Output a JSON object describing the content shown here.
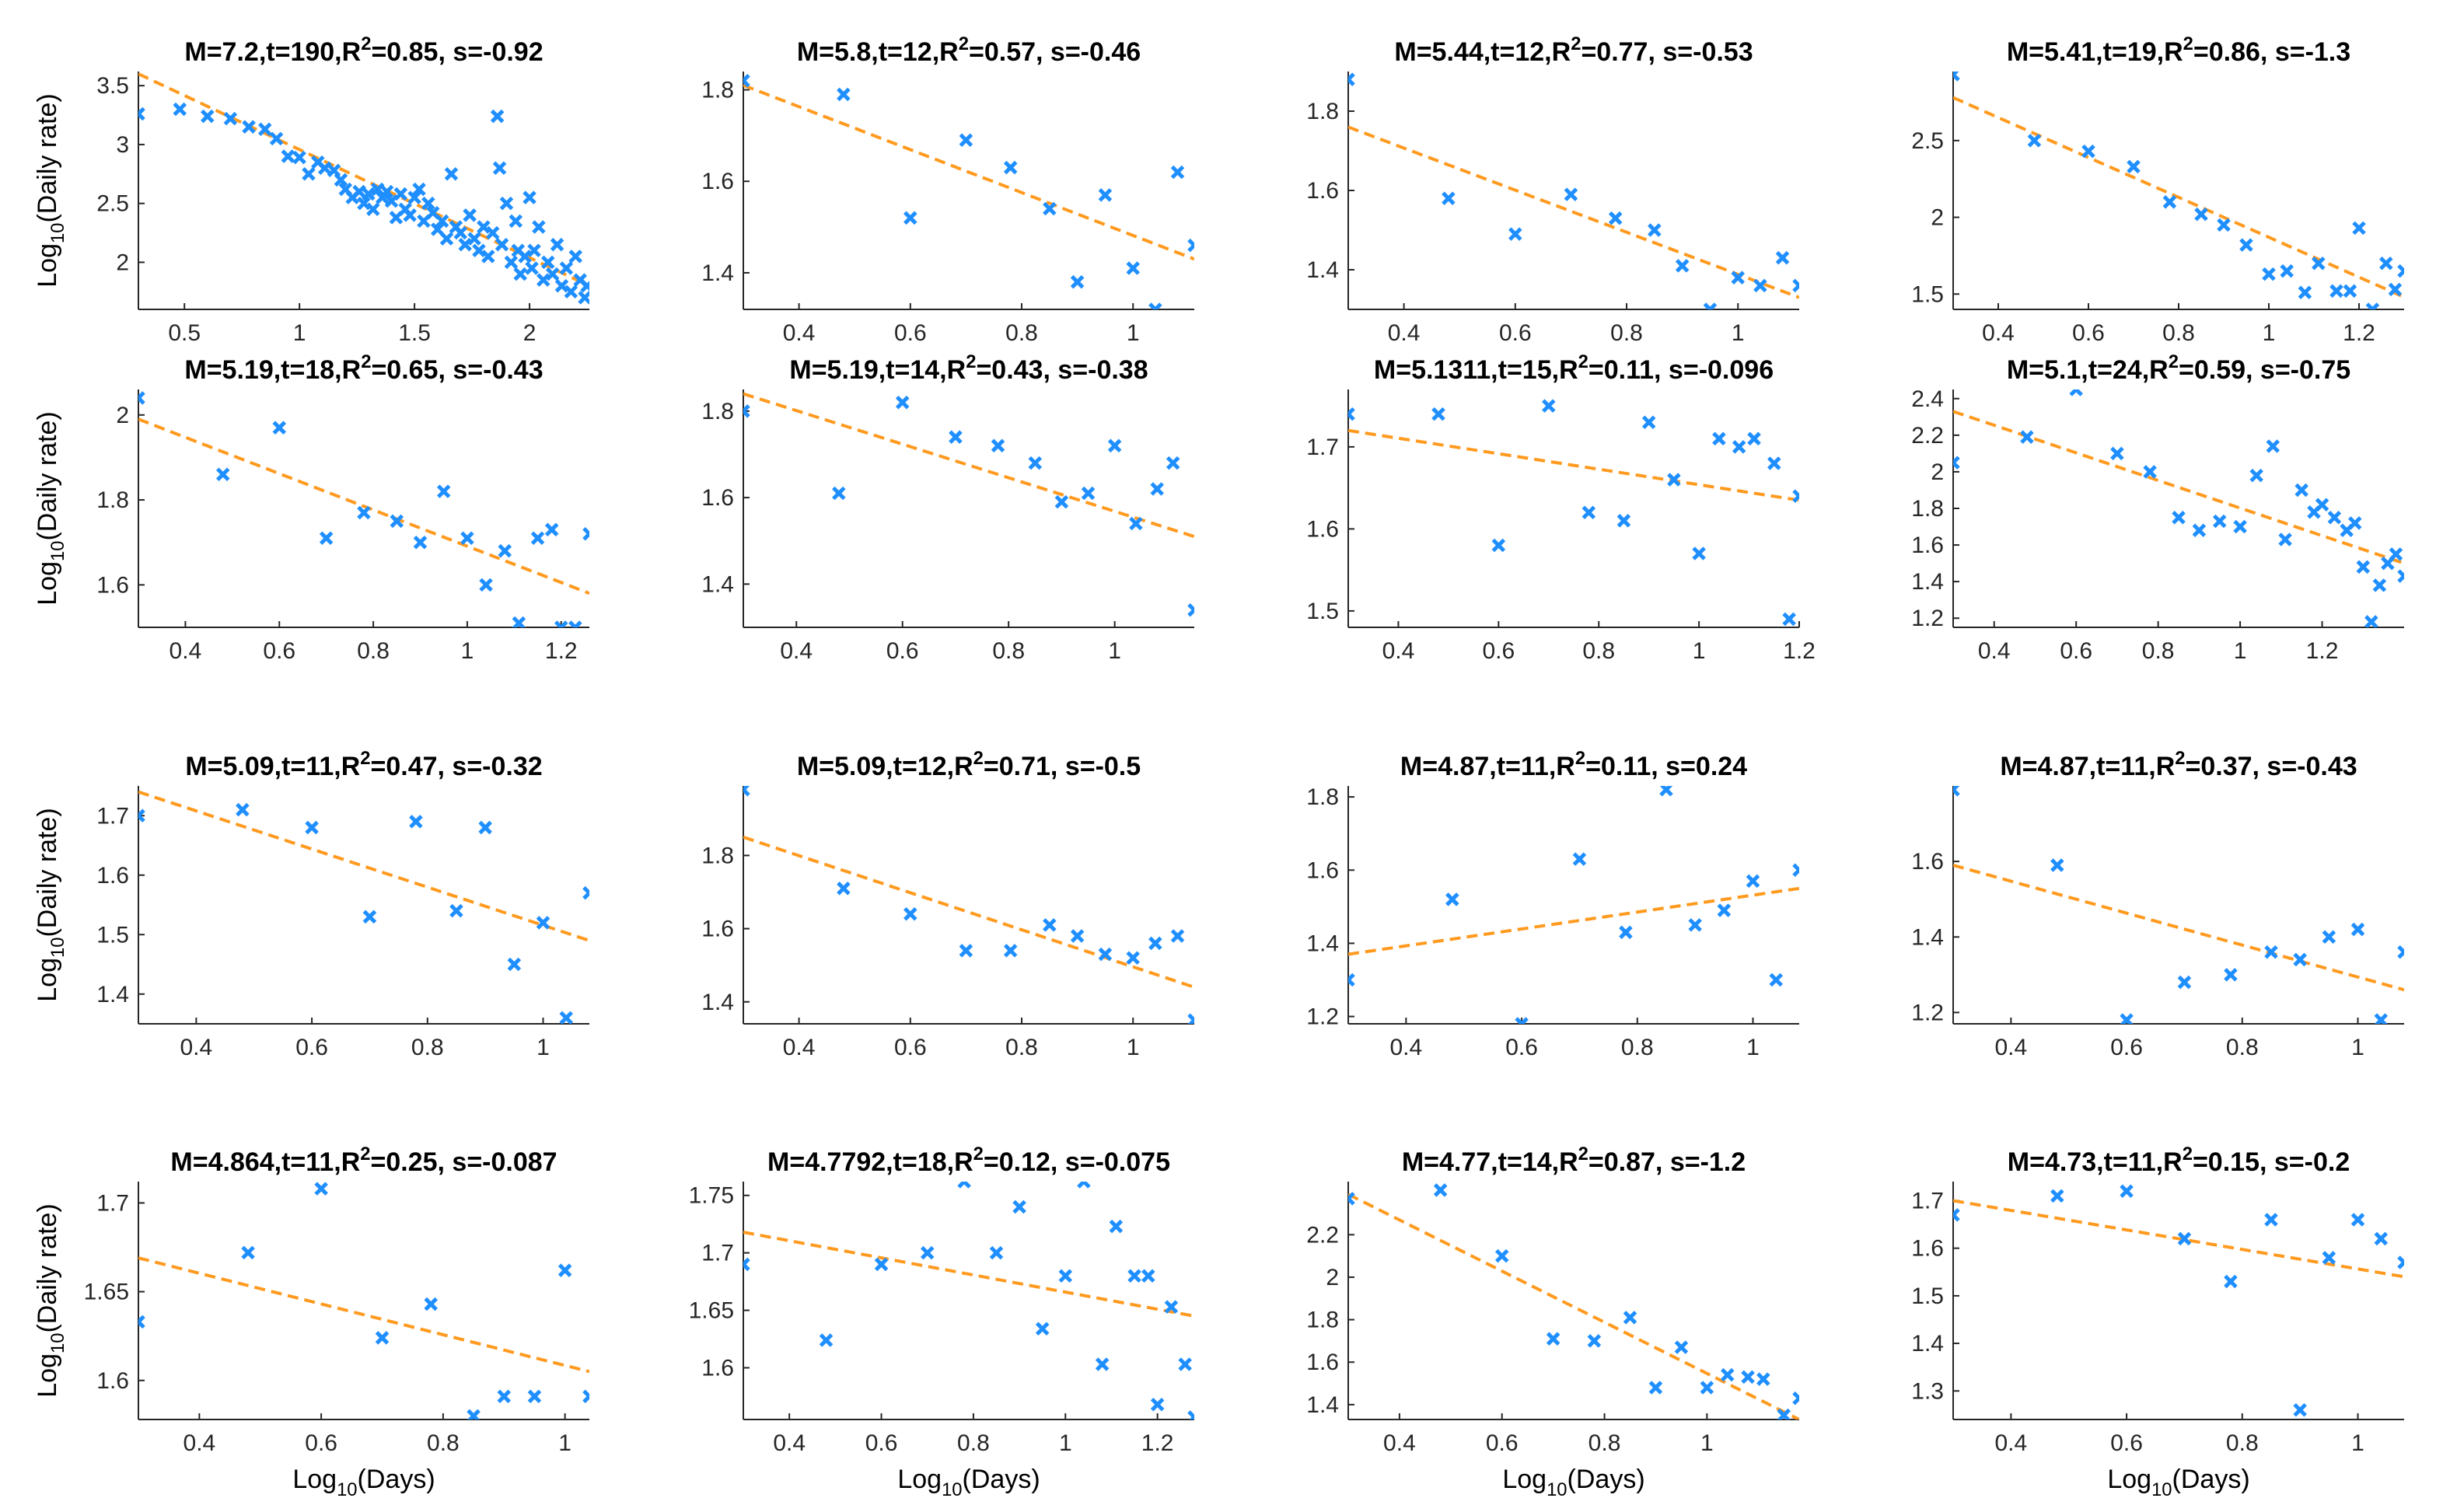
{
  "figure": {
    "shared_ylabel": "Log10(Daily rate)",
    "shared_xlabel": "Log10(Days)",
    "colors": {
      "points": "#1f8fff",
      "fit": "#ff9a1f",
      "axes": "#262626",
      "text": "#000000"
    }
  },
  "chart_data": [
    {
      "type": "scatter",
      "title": "M=7.2,t=190,R^2=0.85, s=-0.92",
      "xlim": [
        0.3,
        2.26
      ],
      "ylim": [
        1.6,
        3.62
      ],
      "xticks": [
        0.5,
        1,
        1.5,
        2
      ],
      "xticklabels": [
        "0.5",
        "1",
        "1.5",
        "2"
      ],
      "yticks": [
        2,
        2.5,
        3,
        3.5
      ],
      "yticklabels": [
        "2",
        "2.5",
        "3",
        "3.5"
      ],
      "xlabel": "",
      "ylabel": "Log10(Daily rate)",
      "fit": {
        "x": [
          0.3,
          2.26
        ],
        "y": [
          3.6,
          1.8
        ]
      },
      "x": [
        0.3,
        0.48,
        0.6,
        0.7,
        0.78,
        0.85,
        0.9,
        0.95,
        1.0,
        1.04,
        1.08,
        1.11,
        1.15,
        1.18,
        1.2,
        1.23,
        1.26,
        1.28,
        1.3,
        1.32,
        1.34,
        1.36,
        1.38,
        1.4,
        1.42,
        1.44,
        1.46,
        1.48,
        1.5,
        1.52,
        1.54,
        1.56,
        1.58,
        1.6,
        1.62,
        1.64,
        1.66,
        1.68,
        1.7,
        1.72,
        1.74,
        1.76,
        1.78,
        1.8,
        1.82,
        1.84,
        1.86,
        1.87,
        1.88,
        1.9,
        1.92,
        1.94,
        1.95,
        1.96,
        1.98,
        2.0,
        2.01,
        2.02,
        2.04,
        2.06,
        2.08,
        2.1,
        2.12,
        2.14,
        2.16,
        2.18,
        2.2,
        2.22,
        2.24,
        2.25
      ],
      "y": [
        3.26,
        3.3,
        3.24,
        3.22,
        3.15,
        3.13,
        3.05,
        2.9,
        2.89,
        2.75,
        2.85,
        2.8,
        2.78,
        2.7,
        2.62,
        2.55,
        2.6,
        2.5,
        2.58,
        2.45,
        2.62,
        2.55,
        2.6,
        2.52,
        2.38,
        2.58,
        2.45,
        2.4,
        2.55,
        2.62,
        2.35,
        2.5,
        2.42,
        2.28,
        2.35,
        2.2,
        2.75,
        2.3,
        2.25,
        2.15,
        2.4,
        2.2,
        2.1,
        2.3,
        2.05,
        2.25,
        3.24,
        2.8,
        2.15,
        2.5,
        2.0,
        2.35,
        2.1,
        1.9,
        2.05,
        2.55,
        1.95,
        2.1,
        2.3,
        1.85,
        2.0,
        1.9,
        2.15,
        1.8,
        1.95,
        1.75,
        2.05,
        1.85,
        1.7,
        1.8
      ]
    },
    {
      "type": "scatter",
      "title": "M=5.8,t=12,R^2=0.57, s=-0.46",
      "xlim": [
        0.3,
        1.11
      ],
      "ylim": [
        1.32,
        1.84
      ],
      "xticks": [
        0.4,
        0.6,
        0.8,
        1
      ],
      "xticklabels": [
        "0.4",
        "0.6",
        "0.8",
        "1"
      ],
      "yticks": [
        1.4,
        1.6,
        1.8
      ],
      "yticklabels": [
        "1.4",
        "1.6",
        "1.8"
      ],
      "xlabel": "",
      "ylabel": "",
      "fit": {
        "x": [
          0.3,
          1.11
        ],
        "y": [
          1.81,
          1.43
        ]
      },
      "x": [
        0.3,
        0.48,
        0.6,
        0.7,
        0.78,
        0.85,
        0.9,
        0.95,
        1.0,
        1.04,
        1.08,
        1.11
      ],
      "y": [
        1.82,
        1.79,
        1.52,
        1.69,
        1.63,
        1.54,
        1.38,
        1.57,
        1.41,
        1.32,
        1.62,
        1.46
      ]
    },
    {
      "type": "scatter",
      "title": "M=5.44,t=12,R^2=0.77, s=-0.53",
      "xlim": [
        0.3,
        1.11
      ],
      "ylim": [
        1.3,
        1.9
      ],
      "xticks": [
        0.4,
        0.6,
        0.8,
        1
      ],
      "xticklabels": [
        "0.4",
        "0.6",
        "0.8",
        "1"
      ],
      "yticks": [
        1.4,
        1.6,
        1.8
      ],
      "yticklabels": [
        "1.4",
        "1.6",
        "1.8"
      ],
      "xlabel": "",
      "ylabel": "",
      "fit": {
        "x": [
          0.3,
          1.11
        ],
        "y": [
          1.76,
          1.33
        ]
      },
      "x": [
        0.3,
        0.48,
        0.6,
        0.7,
        0.78,
        0.85,
        0.9,
        0.95,
        1.0,
        1.04,
        1.08,
        1.11
      ],
      "y": [
        1.88,
        1.58,
        1.49,
        1.59,
        1.53,
        1.5,
        1.41,
        1.3,
        1.38,
        1.36,
        1.43,
        1.36
      ]
    },
    {
      "type": "scatter",
      "title": "M=5.41,t=19,R^2=0.86, s=-1.3",
      "xlim": [
        0.3,
        1.3
      ],
      "ylim": [
        1.4,
        2.95
      ],
      "xticks": [
        0.4,
        0.6,
        0.8,
        1,
        1.2
      ],
      "xticklabels": [
        "0.4",
        "0.6",
        "0.8",
        "1",
        "1.2"
      ],
      "yticks": [
        1.5,
        2,
        2.5
      ],
      "yticklabels": [
        "1.5",
        "2",
        "2.5"
      ],
      "xlabel": "",
      "ylabel": "",
      "fit": {
        "x": [
          0.3,
          1.3
        ],
        "y": [
          2.78,
          1.48
        ]
      },
      "x": [
        0.3,
        0.48,
        0.6,
        0.7,
        0.78,
        0.85,
        0.9,
        0.95,
        1.0,
        1.04,
        1.08,
        1.11,
        1.15,
        1.18,
        1.2,
        1.23,
        1.26,
        1.28,
        1.3
      ],
      "y": [
        2.93,
        2.5,
        2.43,
        2.33,
        2.1,
        2.02,
        1.95,
        1.82,
        1.63,
        1.65,
        1.51,
        1.7,
        1.52,
        1.52,
        1.93,
        1.4,
        1.7,
        1.53,
        1.65
      ]
    },
    {
      "type": "scatter",
      "title": "M=5.19,t=18,R^2=0.65, s=-0.43",
      "xlim": [
        0.3,
        1.26
      ],
      "ylim": [
        1.5,
        2.06
      ],
      "xticks": [
        0.4,
        0.6,
        0.8,
        1,
        1.2
      ],
      "xticklabels": [
        "0.4",
        "0.6",
        "0.8",
        "1",
        "1.2"
      ],
      "yticks": [
        1.6,
        1.8,
        2
      ],
      "yticklabels": [
        "1.6",
        "1.8",
        "2"
      ],
      "xlabel": "",
      "ylabel": "Log10(Daily rate)",
      "fit": {
        "x": [
          0.3,
          1.26
        ],
        "y": [
          1.99,
          1.58
        ]
      },
      "x": [
        0.3,
        0.48,
        0.6,
        0.7,
        0.78,
        0.85,
        0.9,
        0.95,
        1.0,
        1.04,
        1.08,
        1.11,
        1.15,
        1.18,
        1.2,
        1.23,
        1.26
      ],
      "y": [
        2.04,
        1.86,
        1.97,
        1.71,
        1.77,
        1.75,
        1.7,
        1.82,
        1.71,
        1.6,
        1.68,
        1.51,
        1.71,
        1.73,
        1.5,
        1.5,
        1.72
      ]
    },
    {
      "type": "scatter",
      "title": "M=5.19,t=14,R^2=0.43, s=-0.38",
      "xlim": [
        0.3,
        1.15
      ],
      "ylim": [
        1.3,
        1.85
      ],
      "xticks": [
        0.4,
        0.6,
        0.8,
        1
      ],
      "xticklabels": [
        "0.4",
        "0.6",
        "0.8",
        "1"
      ],
      "yticks": [
        1.4,
        1.6,
        1.8
      ],
      "yticklabels": [
        "1.4",
        "1.6",
        "1.8"
      ],
      "xlabel": "",
      "ylabel": "",
      "fit": {
        "x": [
          0.3,
          1.15
        ],
        "y": [
          1.84,
          1.51
        ]
      },
      "x": [
        0.3,
        0.48,
        0.6,
        0.7,
        0.78,
        0.85,
        0.9,
        0.95,
        1.0,
        1.04,
        1.08,
        1.11,
        1.15
      ],
      "y": [
        1.8,
        1.61,
        1.82,
        1.74,
        1.72,
        1.68,
        1.59,
        1.61,
        1.72,
        1.54,
        1.62,
        1.68,
        1.34
      ]
    },
    {
      "type": "scatter",
      "title": "M=5.1311,t=15,R^2=0.11, s=-0.096",
      "xlim": [
        0.3,
        1.2
      ],
      "ylim": [
        1.48,
        1.77
      ],
      "xticks": [
        0.4,
        0.6,
        0.8,
        1,
        1.2
      ],
      "xticklabels": [
        "0.4",
        "0.6",
        "0.8",
        "1",
        "1.2"
      ],
      "yticks": [
        1.5,
        1.6,
        1.7
      ],
      "yticklabels": [
        "1.5",
        "1.6",
        "1.7"
      ],
      "xlabel": "",
      "ylabel": "",
      "fit": {
        "x": [
          0.3,
          1.2
        ],
        "y": [
          1.72,
          1.635
        ]
      },
      "x": [
        0.3,
        0.48,
        0.6,
        0.7,
        0.78,
        0.85,
        0.9,
        0.95,
        1.0,
        1.04,
        1.08,
        1.11,
        1.15,
        1.18,
        1.2
      ],
      "y": [
        1.74,
        1.74,
        1.58,
        1.75,
        1.62,
        1.61,
        1.73,
        1.66,
        1.57,
        1.71,
        1.7,
        1.71,
        1.68,
        1.49,
        1.64
      ]
    },
    {
      "type": "scatter",
      "title": "M=5.1,t=24,R^2=0.59, s=-0.75",
      "xlim": [
        0.3,
        1.4
      ],
      "ylim": [
        1.15,
        2.45
      ],
      "xticks": [
        0.4,
        0.6,
        0.8,
        1,
        1.2
      ],
      "xticklabels": [
        "0.4",
        "0.6",
        "0.8",
        "1",
        "1.2"
      ],
      "yticks": [
        1.2,
        1.4,
        1.6,
        1.8,
        2,
        2.2,
        2.4
      ],
      "yticklabels": [
        "1.2",
        "1.4",
        "1.6",
        "1.8",
        "2",
        "2.2",
        "2.4"
      ],
      "xlabel": "",
      "ylabel": "",
      "fit": {
        "x": [
          0.3,
          1.4
        ],
        "y": [
          2.33,
          1.5
        ]
      },
      "x": [
        0.3,
        0.48,
        0.6,
        0.7,
        0.78,
        0.85,
        0.9,
        0.95,
        1.0,
        1.04,
        1.08,
        1.11,
        1.15,
        1.18,
        1.2,
        1.23,
        1.26,
        1.28,
        1.3,
        1.32,
        1.34,
        1.36,
        1.38,
        1.4
      ],
      "y": [
        2.05,
        2.19,
        2.45,
        2.1,
        2.0,
        1.75,
        1.68,
        1.73,
        1.7,
        1.98,
        2.14,
        1.63,
        1.9,
        1.78,
        1.82,
        1.75,
        1.68,
        1.72,
        1.48,
        1.18,
        1.38,
        1.5,
        1.55,
        1.43
      ]
    },
    {
      "type": "scatter",
      "title": "M=5.09,t=11,R^2=0.47, s=-0.32",
      "xlim": [
        0.3,
        1.08
      ],
      "ylim": [
        1.35,
        1.75
      ],
      "xticks": [
        0.4,
        0.6,
        0.8,
        1
      ],
      "xticklabels": [
        "0.4",
        "0.6",
        "0.8",
        "1"
      ],
      "yticks": [
        1.4,
        1.5,
        1.6,
        1.7
      ],
      "yticklabels": [
        "1.4",
        "1.5",
        "1.6",
        "1.7"
      ],
      "xlabel": "",
      "ylabel": "Log10(Daily rate)",
      "fit": {
        "x": [
          0.3,
          1.08
        ],
        "y": [
          1.74,
          1.49
        ]
      },
      "x": [
        0.3,
        0.48,
        0.6,
        0.7,
        0.78,
        0.85,
        0.9,
        0.95,
        1.0,
        1.04,
        1.08
      ],
      "y": [
        1.7,
        1.71,
        1.68,
        1.53,
        1.69,
        1.54,
        1.68,
        1.45,
        1.52,
        1.36,
        1.57
      ]
    },
    {
      "type": "scatter",
      "title": "M=5.09,t=12,R^2=0.71, s=-0.5",
      "xlim": [
        0.3,
        1.11
      ],
      "ylim": [
        1.34,
        1.99
      ],
      "xticks": [
        0.4,
        0.6,
        0.8,
        1
      ],
      "xticklabels": [
        "0.4",
        "0.6",
        "0.8",
        "1"
      ],
      "yticks": [
        1.4,
        1.6,
        1.8
      ],
      "yticklabels": [
        "1.4",
        "1.6",
        "1.8"
      ],
      "xlabel": "",
      "ylabel": "",
      "fit": {
        "x": [
          0.3,
          1.11
        ],
        "y": [
          1.85,
          1.44
        ]
      },
      "x": [
        0.3,
        0.48,
        0.6,
        0.7,
        0.78,
        0.85,
        0.9,
        0.95,
        1.0,
        1.04,
        1.08,
        1.11
      ],
      "y": [
        1.98,
        1.71,
        1.64,
        1.54,
        1.54,
        1.61,
        1.58,
        1.53,
        1.52,
        1.56,
        1.58,
        1.35
      ]
    },
    {
      "type": "scatter",
      "title": "M=4.87,t=11,R^2=0.11, s=0.24",
      "xlim": [
        0.3,
        1.08
      ],
      "ylim": [
        1.18,
        1.83
      ],
      "xticks": [
        0.4,
        0.6,
        0.8,
        1
      ],
      "xticklabels": [
        "0.4",
        "0.6",
        "0.8",
        "1"
      ],
      "yticks": [
        1.2,
        1.4,
        1.6,
        1.8
      ],
      "yticklabels": [
        "1.2",
        "1.4",
        "1.6",
        "1.8"
      ],
      "xlabel": "",
      "ylabel": "",
      "fit": {
        "x": [
          0.3,
          1.08
        ],
        "y": [
          1.37,
          1.55
        ]
      },
      "x": [
        0.3,
        0.48,
        0.6,
        0.7,
        0.78,
        0.85,
        0.9,
        0.95,
        1.0,
        1.04,
        1.08
      ],
      "y": [
        1.3,
        1.52,
        1.18,
        1.63,
        1.43,
        1.82,
        1.45,
        1.49,
        1.57,
        1.3,
        1.6
      ]
    },
    {
      "type": "scatter",
      "title": "M=4.87,t=11,R^2=0.37, s=-0.43",
      "xlim": [
        0.3,
        1.08
      ],
      "ylim": [
        1.17,
        1.8
      ],
      "xticks": [
        0.4,
        0.6,
        0.8,
        1
      ],
      "xticklabels": [
        "0.4",
        "0.6",
        "0.8",
        "1"
      ],
      "yticks": [
        1.2,
        1.4,
        1.6
      ],
      "yticklabels": [
        "1.2",
        "1.4",
        "1.6"
      ],
      "xlabel": "",
      "ylabel": "",
      "fit": {
        "x": [
          0.3,
          1.08
        ],
        "y": [
          1.59,
          1.26
        ]
      },
      "x": [
        0.3,
        0.48,
        0.6,
        0.7,
        0.78,
        0.85,
        0.9,
        0.95,
        1.0,
        1.04,
        1.08
      ],
      "y": [
        1.79,
        1.59,
        1.18,
        1.28,
        1.3,
        1.36,
        1.34,
        1.4,
        1.42,
        1.18,
        1.36
      ]
    },
    {
      "type": "scatter",
      "title": "M=4.864,t=11,R^2=0.25, s=-0.087",
      "xlim": [
        0.3,
        1.04
      ],
      "ylim": [
        1.578,
        1.712
      ],
      "xticks": [
        0.4,
        0.6,
        0.8,
        1
      ],
      "xticklabels": [
        "0.4",
        "0.6",
        "0.8",
        "1"
      ],
      "yticks": [
        1.6,
        1.65,
        1.7
      ],
      "yticklabels": [
        "1.6",
        "1.65",
        "1.7"
      ],
      "xlabel": "Log10(Days)",
      "ylabel": "Log10(Daily rate)",
      "fit": {
        "x": [
          0.3,
          1.04
        ],
        "y": [
          1.669,
          1.605
        ]
      },
      "x": [
        0.3,
        0.48,
        0.6,
        0.7,
        0.78,
        0.85,
        0.9,
        0.95,
        1.0,
        1.04
      ],
      "y": [
        1.633,
        1.672,
        1.708,
        1.624,
        1.643,
        1.58,
        1.591,
        1.591,
        1.662,
        1.591
      ]
    },
    {
      "type": "scatter",
      "title": "M=4.7792,t=18,R^2=0.12, s=-0.075",
      "xlim": [
        0.3,
        1.28
      ],
      "ylim": [
        1.555,
        1.762
      ],
      "xticks": [
        0.4,
        0.6,
        0.8,
        1,
        1.2
      ],
      "xticklabels": [
        "0.4",
        "0.6",
        "0.8",
        "1",
        "1.2"
      ],
      "yticks": [
        1.6,
        1.65,
        1.7,
        1.75
      ],
      "yticklabels": [
        "1.6",
        "1.65",
        "1.7",
        "1.75"
      ],
      "xlabel": "Log10(Days)",
      "ylabel": "",
      "fit": {
        "x": [
          0.3,
          1.28
        ],
        "y": [
          1.718,
          1.645
        ]
      },
      "x": [
        0.3,
        0.48,
        0.6,
        0.7,
        0.78,
        0.85,
        0.9,
        0.95,
        1.0,
        1.04,
        1.08,
        1.11,
        1.15,
        1.18,
        1.2,
        1.23,
        1.26,
        1.28
      ],
      "y": [
        1.69,
        1.624,
        1.69,
        1.7,
        1.762,
        1.7,
        1.74,
        1.634,
        1.68,
        1.762,
        1.603,
        1.723,
        1.68,
        1.68,
        1.568,
        1.653,
        1.603,
        1.557
      ]
    },
    {
      "type": "scatter",
      "title": "M=4.77,t=14,R^2=0.87, s=-1.2",
      "xlim": [
        0.3,
        1.18
      ],
      "ylim": [
        1.33,
        2.45
      ],
      "xticks": [
        0.4,
        0.6,
        0.8,
        1
      ],
      "xticklabels": [
        "0.4",
        "0.6",
        "0.8",
        "1"
      ],
      "yticks": [
        1.4,
        1.6,
        1.8,
        2,
        2.2
      ],
      "yticklabels": [
        "1.4",
        "1.6",
        "1.8",
        "2",
        "2.2"
      ],
      "xlabel": "Log10(Days)",
      "ylabel": "",
      "fit": {
        "x": [
          0.3,
          1.18
        ],
        "y": [
          2.39,
          1.33
        ]
      },
      "x": [
        0.3,
        0.48,
        0.6,
        0.7,
        0.78,
        0.85,
        0.9,
        0.95,
        1.0,
        1.04,
        1.08,
        1.11,
        1.15,
        1.18
      ],
      "y": [
        2.37,
        2.41,
        2.1,
        1.71,
        1.7,
        1.81,
        1.48,
        1.67,
        1.48,
        1.54,
        1.53,
        1.52,
        1.35,
        1.43
      ]
    },
    {
      "type": "scatter",
      "title": "M=4.73,t=11,R^2=0.15, s=-0.2",
      "xlim": [
        0.3,
        1.08
      ],
      "ylim": [
        1.24,
        1.74
      ],
      "xticks": [
        0.4,
        0.6,
        0.8,
        1
      ],
      "xticklabels": [
        "0.4",
        "0.6",
        "0.8",
        "1"
      ],
      "yticks": [
        1.3,
        1.4,
        1.5,
        1.6,
        1.7
      ],
      "yticklabels": [
        "1.3",
        "1.4",
        "1.5",
        "1.6",
        "1.7"
      ],
      "xlabel": "Log10(Days)",
      "ylabel": "",
      "fit": {
        "x": [
          0.3,
          1.08
        ],
        "y": [
          1.7,
          1.54
        ]
      },
      "x": [
        0.3,
        0.48,
        0.6,
        0.7,
        0.78,
        0.85,
        0.9,
        0.95,
        1.0,
        1.04,
        1.08
      ],
      "y": [
        1.67,
        1.71,
        1.72,
        1.62,
        1.53,
        1.66,
        1.26,
        1.58,
        1.66,
        1.62,
        1.57
      ]
    }
  ]
}
